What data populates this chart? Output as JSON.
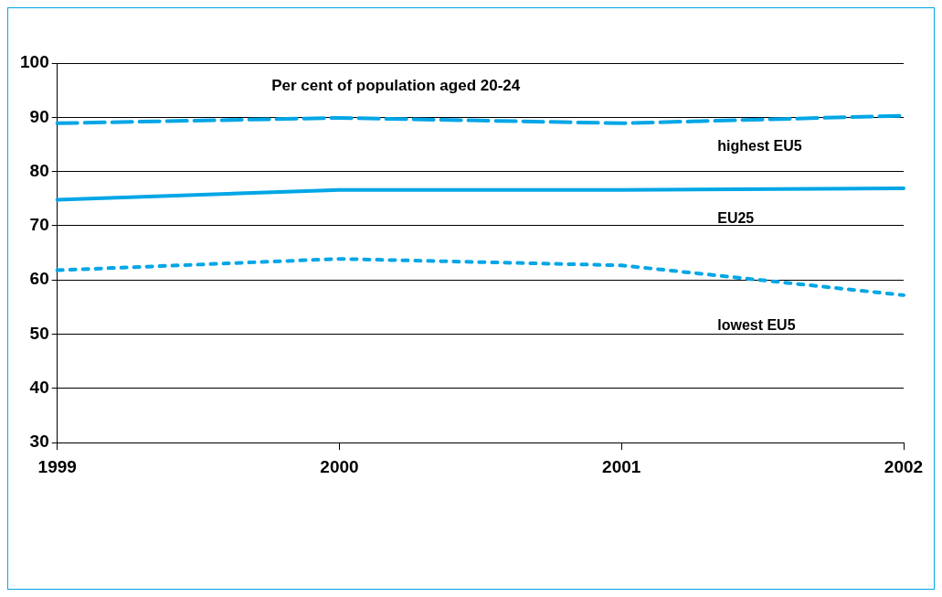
{
  "chart_data": {
    "type": "line",
    "title": "Per cent of population aged 20-24",
    "x": [
      1999,
      2000,
      2001,
      2002
    ],
    "xlim": [
      1999,
      2002
    ],
    "xticks": [
      1999,
      2000,
      2001,
      2002
    ],
    "ylim": [
      30,
      100
    ],
    "yticks": [
      30,
      40,
      50,
      60,
      70,
      80,
      90,
      100
    ],
    "grid": "y",
    "legend": false,
    "marker": "none",
    "series": [
      {
        "name": "highest EU5",
        "color": "#00a6e6",
        "line_style": "dashed",
        "values": [
          88.9,
          89.9,
          88.9,
          90.3
        ]
      },
      {
        "name": "EU25",
        "color": "#00a6e6",
        "line_style": "solid",
        "values": [
          74.8,
          76.6,
          76.6,
          76.9
        ]
      },
      {
        "name": "lowest EU5",
        "color": "#00a6e6",
        "line_style": "dotted",
        "values": [
          61.8,
          63.9,
          62.7,
          57.2
        ]
      }
    ]
  }
}
